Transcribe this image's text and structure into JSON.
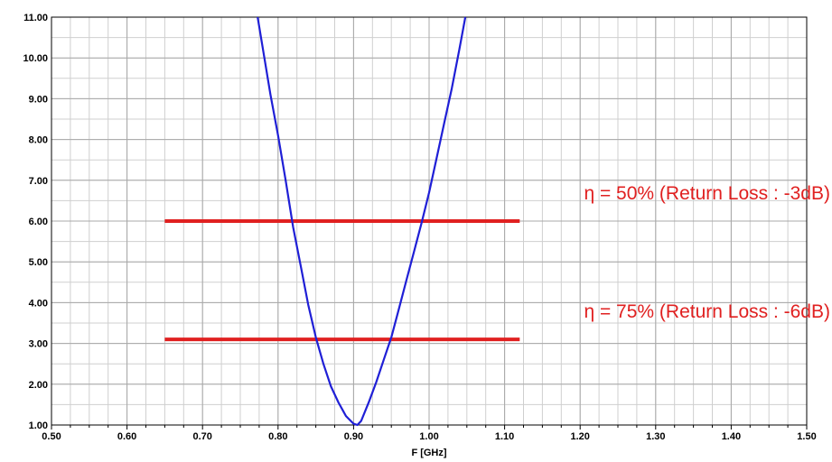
{
  "chart_data": {
    "type": "line",
    "title": "",
    "xlabel": "F [GHz]",
    "ylabel": "",
    "xlim": [
      0.5,
      1.5
    ],
    "ylim": [
      1.0,
      11.0
    ],
    "x_ticks": [
      "0.50",
      "0.60",
      "0.70",
      "0.80",
      "0.90",
      "1.00",
      "1.10",
      "1.20",
      "1.30",
      "1.40",
      "1.50"
    ],
    "y_ticks": [
      "1.00",
      "2.00",
      "3.00",
      "4.00",
      "5.00",
      "6.00",
      "7.00",
      "8.00",
      "9.00",
      "10.00",
      "11.00"
    ],
    "grid": true,
    "series": [
      {
        "color": "#1f1fd6",
        "x": [
          0.773,
          0.79,
          0.8,
          0.81,
          0.82,
          0.83,
          0.84,
          0.85,
          0.86,
          0.87,
          0.88,
          0.89,
          0.9,
          0.905,
          0.91,
          0.92,
          0.93,
          0.94,
          0.95,
          0.96,
          0.97,
          0.98,
          0.99,
          1.0,
          1.01,
          1.02,
          1.03,
          1.04,
          1.048
        ],
        "y": [
          11.0,
          9.1,
          8.1,
          7.0,
          5.85,
          4.9,
          3.95,
          3.15,
          2.5,
          1.95,
          1.55,
          1.22,
          1.03,
          1.0,
          1.1,
          1.55,
          2.05,
          2.6,
          3.15,
          3.85,
          4.55,
          5.25,
          5.95,
          6.7,
          7.55,
          8.4,
          9.25,
          10.2,
          11.0
        ]
      }
    ],
    "reference_lines": [
      {
        "y": 6.0,
        "x_start": 0.65,
        "x_end": 1.12,
        "color": "#e02020",
        "label": "η = 50%  (Return Loss : -3dB)"
      },
      {
        "y": 3.1,
        "x_start": 0.65,
        "x_end": 1.12,
        "color": "#e02020",
        "label": "η = 75%  (Return Loss : -6dB)"
      }
    ]
  }
}
